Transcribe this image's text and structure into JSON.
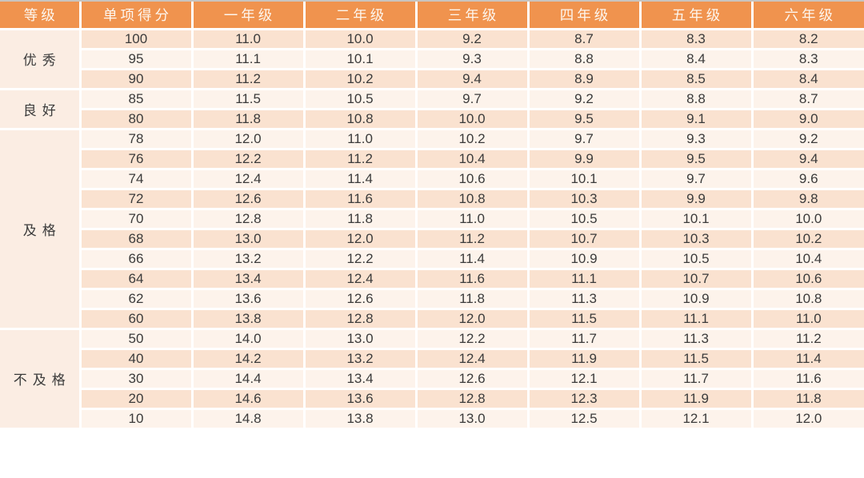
{
  "colors": {
    "header_bg": "#F0934E",
    "header_text": "#FDF6EE",
    "row_peach_bg": "#FAE2D0",
    "row_light_bg": "#FDF3EB",
    "grade_column_bg": "#FBEDE3",
    "cell_text": "#3B3B3B",
    "gridline": "#FFFFFF",
    "top_hairline": "#C9C4BE"
  },
  "chart_data": {
    "type": "table",
    "title": "",
    "columns": [
      "等级",
      "单项得分",
      "一年级",
      "二年级",
      "三年级",
      "四年级",
      "五年级",
      "六年级"
    ],
    "groups": [
      {
        "grade": "优秀",
        "rows": [
          {
            "score": "100",
            "values": [
              "11.0",
              "10.0",
              "9.2",
              "8.7",
              "8.3",
              "8.2"
            ]
          },
          {
            "score": "95",
            "values": [
              "11.1",
              "10.1",
              "9.3",
              "8.8",
              "8.4",
              "8.3"
            ]
          },
          {
            "score": "90",
            "values": [
              "11.2",
              "10.2",
              "9.4",
              "8.9",
              "8.5",
              "8.4"
            ]
          }
        ]
      },
      {
        "grade": "良好",
        "rows": [
          {
            "score": "85",
            "values": [
              "11.5",
              "10.5",
              "9.7",
              "9.2",
              "8.8",
              "8.7"
            ]
          },
          {
            "score": "80",
            "values": [
              "11.8",
              "10.8",
              "10.0",
              "9.5",
              "9.1",
              "9.0"
            ]
          }
        ]
      },
      {
        "grade": "及格",
        "rows": [
          {
            "score": "78",
            "values": [
              "12.0",
              "11.0",
              "10.2",
              "9.7",
              "9.3",
              "9.2"
            ]
          },
          {
            "score": "76",
            "values": [
              "12.2",
              "11.2",
              "10.4",
              "9.9",
              "9.5",
              "9.4"
            ]
          },
          {
            "score": "74",
            "values": [
              "12.4",
              "11.4",
              "10.6",
              "10.1",
              "9.7",
              "9.6"
            ]
          },
          {
            "score": "72",
            "values": [
              "12.6",
              "11.6",
              "10.8",
              "10.3",
              "9.9",
              "9.8"
            ]
          },
          {
            "score": "70",
            "values": [
              "12.8",
              "11.8",
              "11.0",
              "10.5",
              "10.1",
              "10.0"
            ]
          },
          {
            "score": "68",
            "values": [
              "13.0",
              "12.0",
              "11.2",
              "10.7",
              "10.3",
              "10.2"
            ]
          },
          {
            "score": "66",
            "values": [
              "13.2",
              "12.2",
              "11.4",
              "10.9",
              "10.5",
              "10.4"
            ]
          },
          {
            "score": "64",
            "values": [
              "13.4",
              "12.4",
              "11.6",
              "11.1",
              "10.7",
              "10.6"
            ]
          },
          {
            "score": "62",
            "values": [
              "13.6",
              "12.6",
              "11.8",
              "11.3",
              "10.9",
              "10.8"
            ]
          },
          {
            "score": "60",
            "values": [
              "13.8",
              "12.8",
              "12.0",
              "11.5",
              "11.1",
              "11.0"
            ]
          }
        ]
      },
      {
        "grade": "不及格",
        "rows": [
          {
            "score": "50",
            "values": [
              "14.0",
              "13.0",
              "12.2",
              "11.7",
              "11.3",
              "11.2"
            ]
          },
          {
            "score": "40",
            "values": [
              "14.2",
              "13.2",
              "12.4",
              "11.9",
              "11.5",
              "11.4"
            ]
          },
          {
            "score": "30",
            "values": [
              "14.4",
              "13.4",
              "12.6",
              "12.1",
              "11.7",
              "11.6"
            ]
          },
          {
            "score": "20",
            "values": [
              "14.6",
              "13.6",
              "12.8",
              "12.3",
              "11.9",
              "11.8"
            ]
          },
          {
            "score": "10",
            "values": [
              "14.8",
              "13.8",
              "13.0",
              "12.5",
              "12.1",
              "12.0"
            ]
          }
        ]
      }
    ]
  }
}
